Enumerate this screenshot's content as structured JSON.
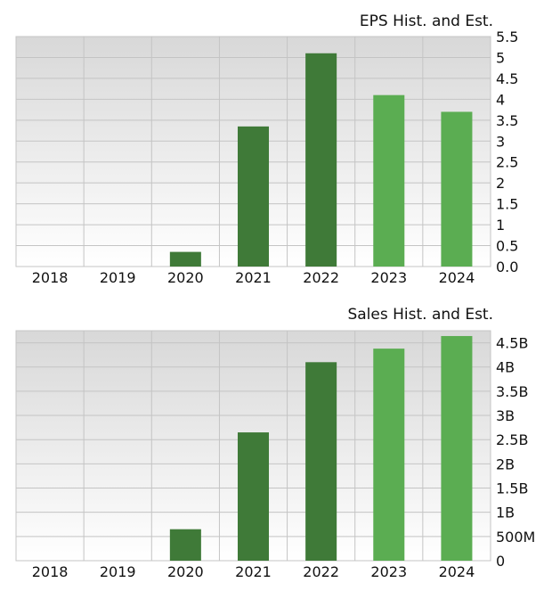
{
  "chart_data": [
    {
      "type": "bar",
      "title": "EPS Hist. and Est.",
      "categories": [
        "2018",
        "2019",
        "2020",
        "2021",
        "2022",
        "2023",
        "2024"
      ],
      "values": [
        null,
        null,
        0.35,
        3.35,
        5.1,
        4.1,
        3.7
      ],
      "estimate": [
        false,
        false,
        false,
        false,
        false,
        true,
        true
      ],
      "ylim": [
        0,
        5.5
      ],
      "yticks": [
        0,
        0.5,
        1,
        1.5,
        2,
        2.5,
        3,
        3.5,
        4,
        4.5,
        5,
        5.5
      ],
      "ytick_labels": [
        "0.0",
        "0.5",
        "1",
        "1.5",
        "2",
        "2.5",
        "3",
        "3.5",
        "4",
        "4.5",
        "5",
        "5.5"
      ],
      "grid": true
    },
    {
      "type": "bar",
      "title": "Sales Hist. and Est.",
      "categories": [
        "2018",
        "2019",
        "2020",
        "2021",
        "2022",
        "2023",
        "2024"
      ],
      "values": [
        null,
        null,
        650000000,
        2650000000,
        4100000000,
        4380000000,
        4640000000
      ],
      "estimate": [
        false,
        false,
        false,
        false,
        false,
        true,
        true
      ],
      "ylim": [
        0,
        4750000000
      ],
      "yticks": [
        0,
        500000000,
        1000000000,
        1500000000,
        2000000000,
        2500000000,
        3000000000,
        3500000000,
        4000000000,
        4500000000
      ],
      "ytick_labels": [
        "0",
        "500M",
        "1B",
        "1.5B",
        "2B",
        "2.5B",
        "3B",
        "3.5B",
        "4B",
        "4.5B"
      ],
      "grid": true
    }
  ],
  "colors": {
    "historical": "#3f7a38",
    "estimate": "#5bad52",
    "plot_top": "#d8d8d8",
    "plot_bottom": "#ffffff",
    "grid": "#c4c4c4"
  }
}
